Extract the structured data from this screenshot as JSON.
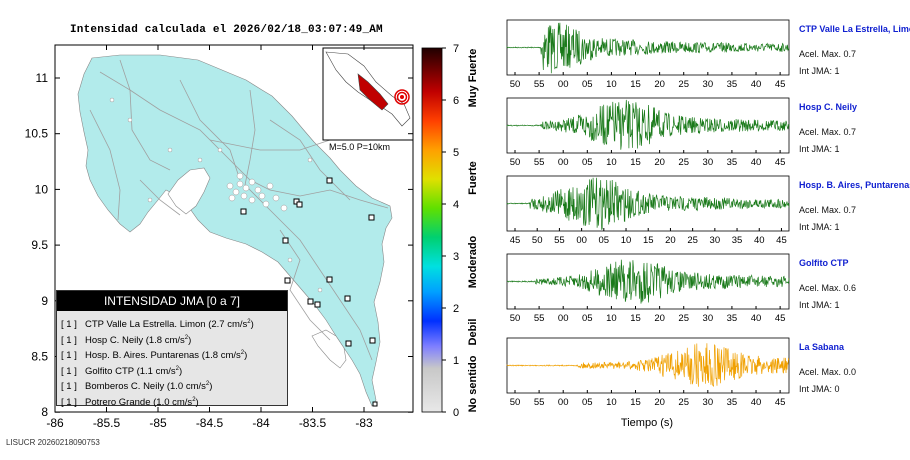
{
  "map": {
    "title": "Intensidad calculada el 2026/02/18_03:07:49_AM",
    "x_ticks": [
      "-86",
      "-85.5",
      "-85",
      "-84.5",
      "-84",
      "-83.5",
      "-83"
    ],
    "y_ticks": [
      "11",
      "10.5",
      "10",
      "9.5",
      "9",
      "8.5",
      "8"
    ],
    "inset_label": "M=5.0 P=10km",
    "footer": "LISUCR 20260218090753",
    "land_color": "#b2ebeb",
    "ocean_color": "#ffffff"
  },
  "legend": {
    "title": "INTENSIDAD JMA [0 a 7]",
    "items": [
      {
        "level": "[ 1 ]",
        "text": "CTP Valle La Estrella. Limon (2.7 cm/s",
        "sup": "2",
        "close": ")"
      },
      {
        "level": "[ 1 ]",
        "text": "Hosp C. Neily (1.8 cm/s",
        "sup": "2",
        "close": ")"
      },
      {
        "level": "[ 1 ]",
        "text": "Hosp. B. Aires. Puntarenas (1.8 cm/s",
        "sup": "2",
        "close": ")"
      },
      {
        "level": "[ 1 ]",
        "text": "Golfito CTP (1.1 cm/s",
        "sup": "2",
        "close": ")"
      },
      {
        "level": "[ 1 ]",
        "text": "Bomberos C. Neily (1.0 cm/s",
        "sup": "2",
        "close": ")"
      },
      {
        "level": "[ 1 ]",
        "text": "Potrero Grande (1.0 cm/s",
        "sup": "2",
        "close": ")"
      }
    ]
  },
  "colorbar": {
    "ticks": [
      "7",
      "6",
      "5",
      "4",
      "3",
      "2",
      "1",
      "0"
    ],
    "labels": [
      "Muy Fuerte",
      "Fuerte",
      "Moderado",
      "Debil",
      "No sentido"
    ]
  },
  "seismograms": {
    "xlabel": "Tiempo (s)",
    "panels": [
      {
        "station": "CTP Valle La Estrella, Limon",
        "acel": "Acel. Max. 0.7",
        "jma": "Int JMA: 1",
        "color": "#1a7a1a",
        "onset": 0.12,
        "peak": 0.15,
        "amp": 1.0,
        "ticks": [
          "50",
          "55",
          "00",
          "05",
          "10",
          "15",
          "20",
          "25",
          "30",
          "35",
          "40",
          "45"
        ]
      },
      {
        "station": "Hosp C. Neily",
        "acel": "Acel. Max. 0.7",
        "jma": "Int JMA: 1",
        "color": "#1a7a1a",
        "onset": 0.12,
        "peak": 0.42,
        "amp": 1.0,
        "ticks": [
          "50",
          "55",
          "00",
          "05",
          "10",
          "15",
          "20",
          "25",
          "30",
          "35",
          "40",
          "45"
        ]
      },
      {
        "station": "Hosp. B. Aires, Puntarenas",
        "acel": "Acel. Max. 0.7",
        "jma": "Int JMA: 1",
        "color": "#1a7a1a",
        "onset": 0.08,
        "peak": 0.32,
        "amp": 1.0,
        "ticks": [
          "45",
          "50",
          "55",
          "00",
          "05",
          "10",
          "15",
          "20",
          "25",
          "30",
          "35",
          "40",
          "45"
        ]
      },
      {
        "station": "Golfito CTP",
        "acel": "Acel. Max. 0.6",
        "jma": "Int JMA: 1",
        "color": "#1a7a1a",
        "onset": 0.1,
        "peak": 0.45,
        "amp": 0.9,
        "ticks": [
          "50",
          "55",
          "00",
          "05",
          "10",
          "15",
          "20",
          "25",
          "30",
          "35",
          "40",
          "45"
        ]
      },
      {
        "station": "La Sabana",
        "acel": "Acel. Max. 0.0",
        "jma": "Int JMA: 0",
        "color": "#f0a000",
        "onset": 0.25,
        "peak": 0.7,
        "amp": 0.85,
        "ticks": [
          "50",
          "55",
          "00",
          "05",
          "10",
          "15",
          "20",
          "25",
          "30",
          "35",
          "40",
          "45"
        ]
      }
    ]
  }
}
